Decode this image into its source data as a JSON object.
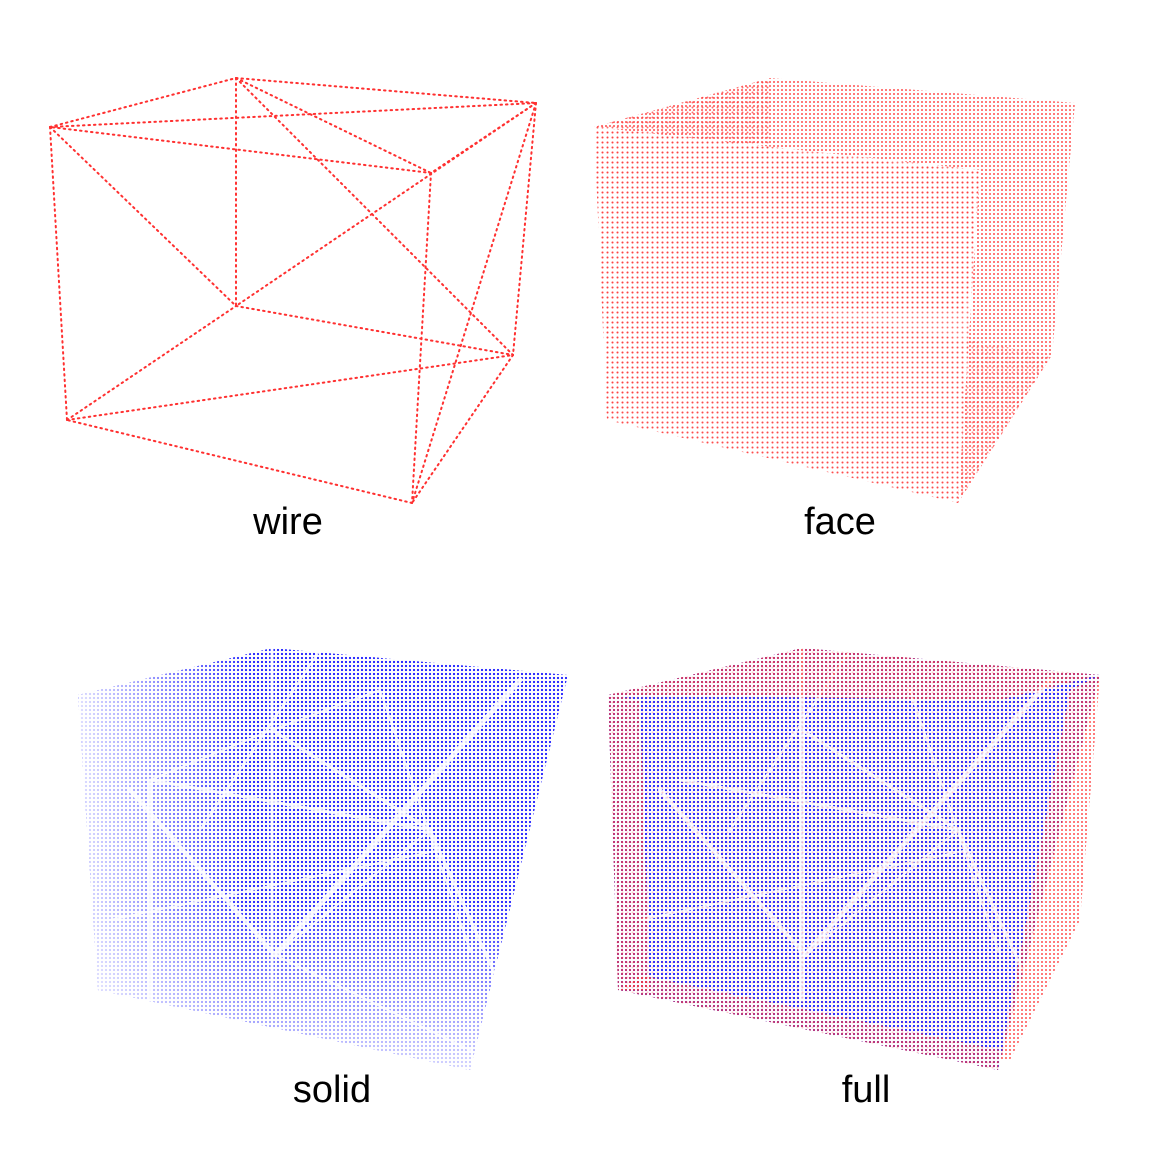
{
  "panels": [
    {
      "id": "wire",
      "label": "wire"
    },
    {
      "id": "face",
      "label": "face"
    },
    {
      "id": "solid",
      "label": "solid"
    },
    {
      "id": "full",
      "label": "full"
    }
  ],
  "colors": {
    "surface_points": "#ff3030",
    "interior_points": "#1a1aff",
    "background": "#ffffff"
  }
}
